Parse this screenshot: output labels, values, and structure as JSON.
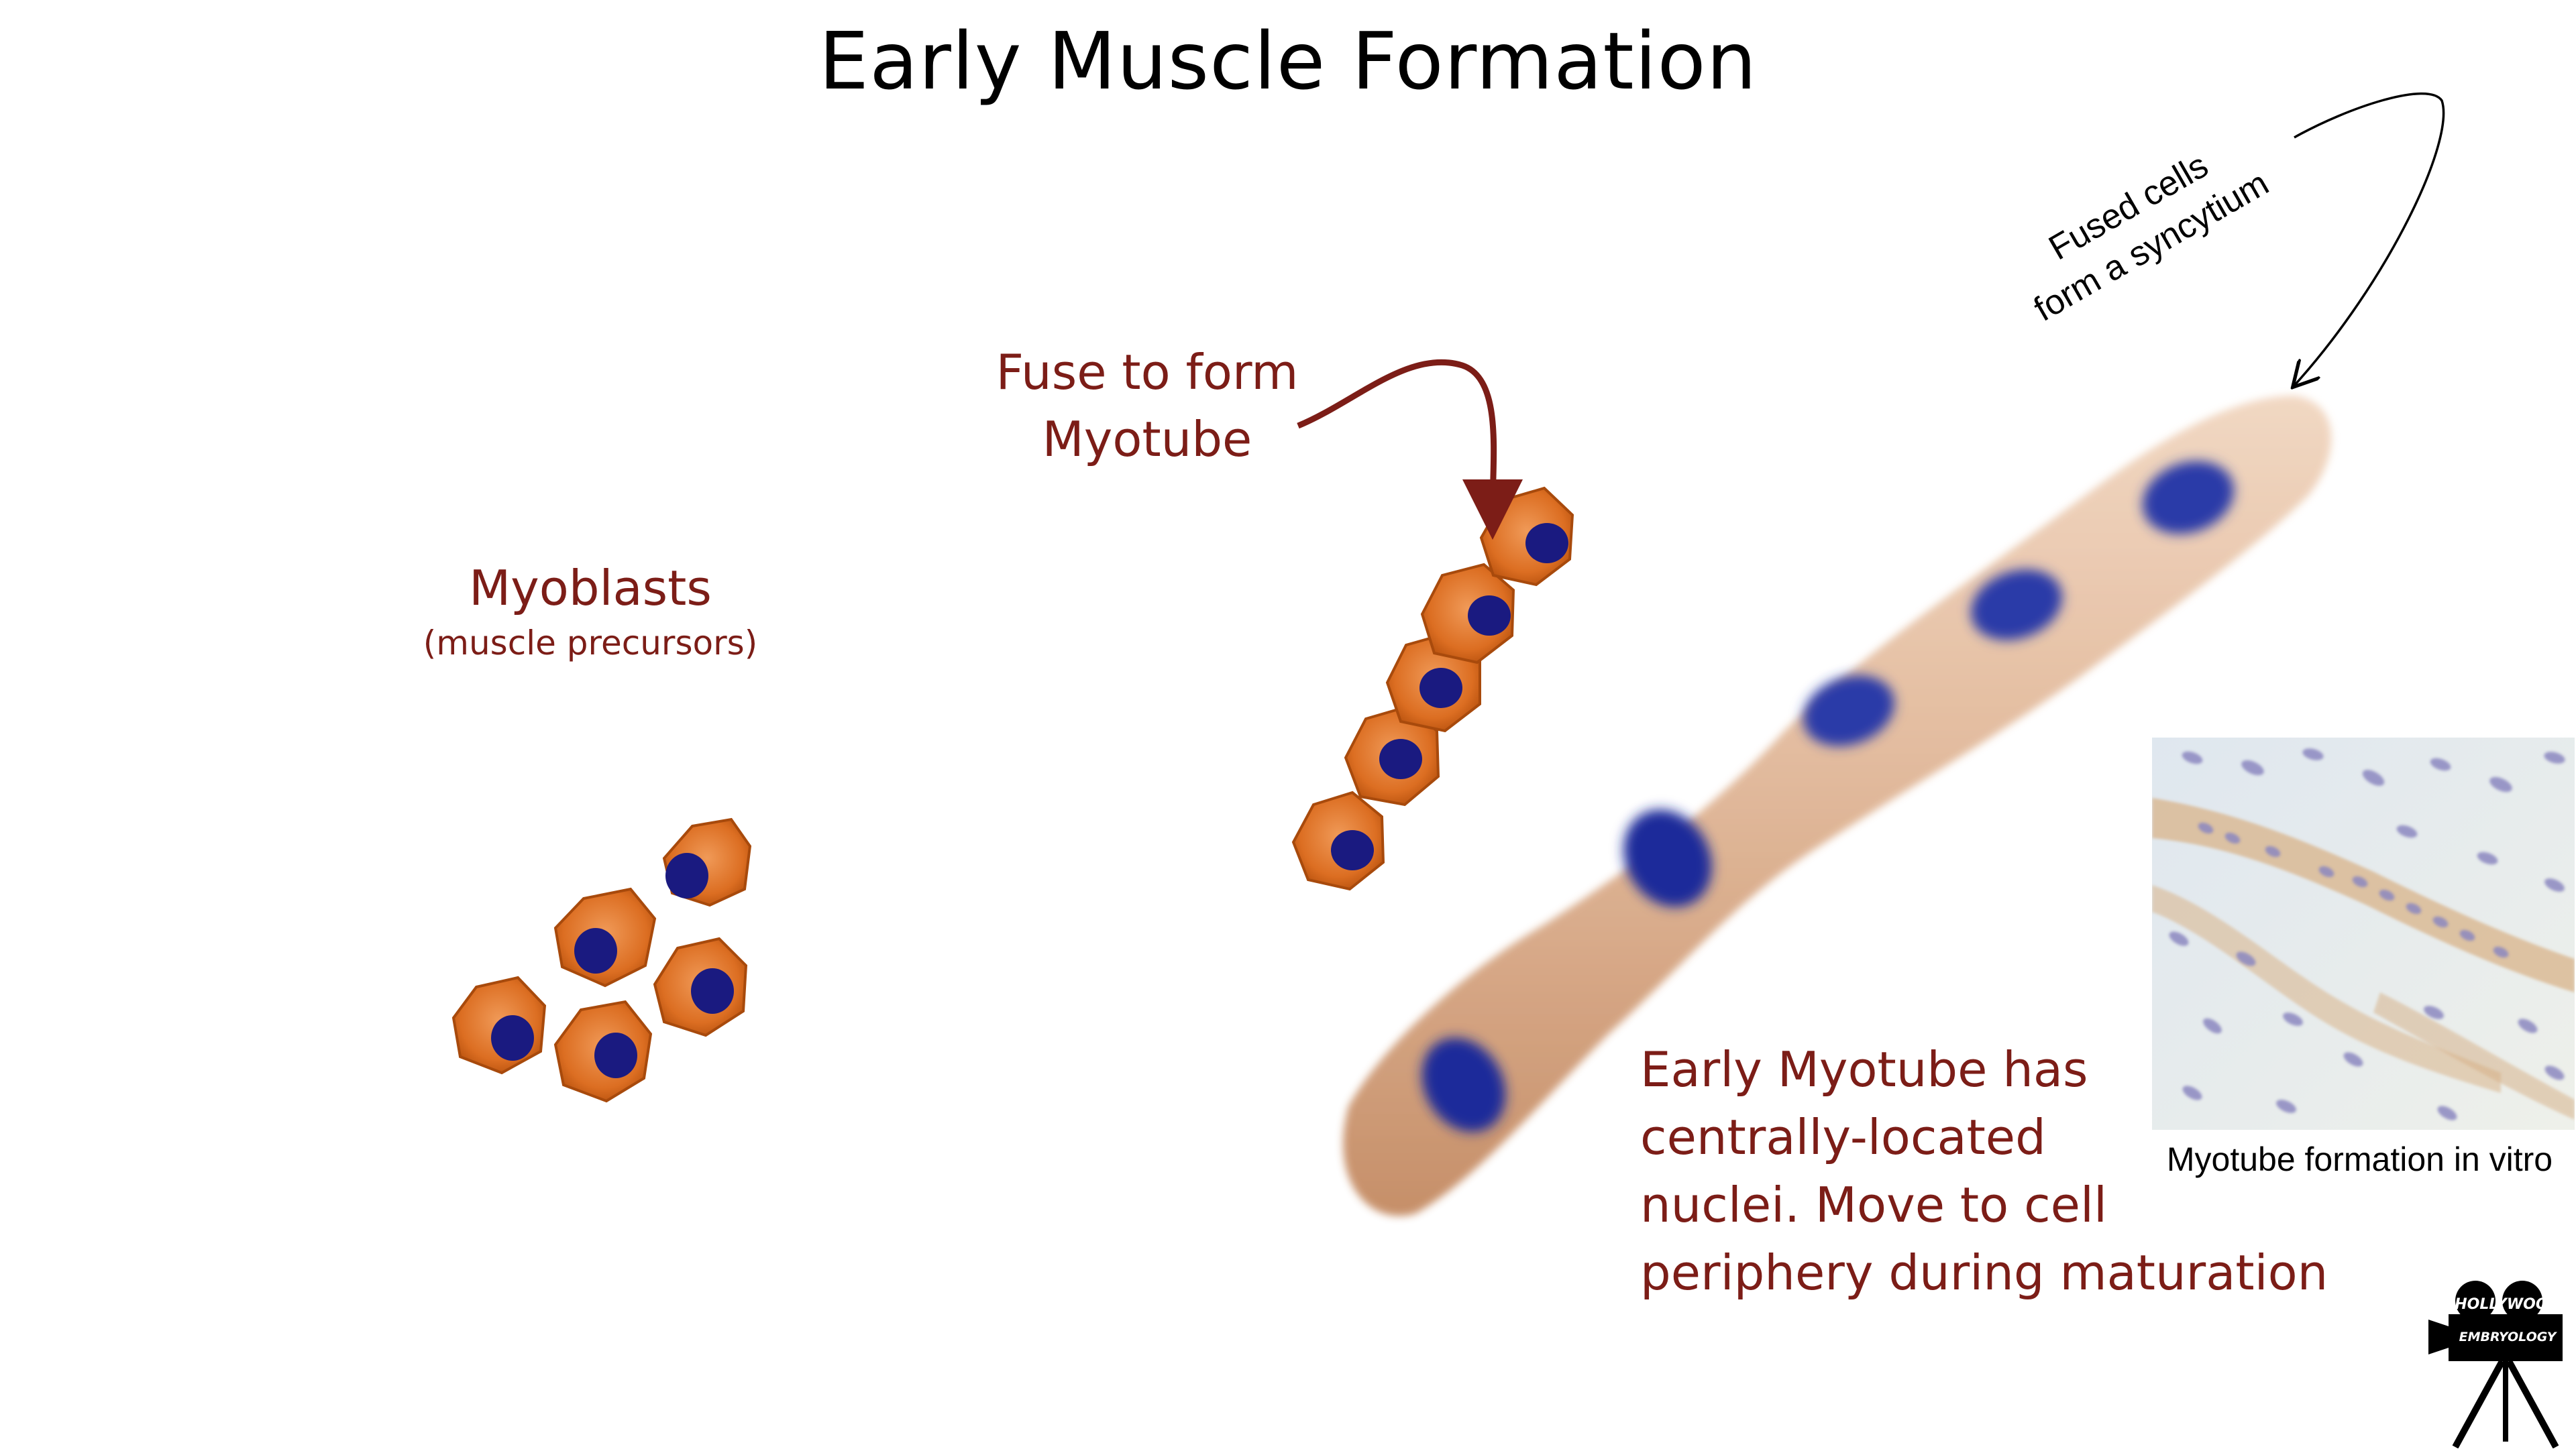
{
  "title": "Early Muscle Formation",
  "myoblasts": {
    "label": "Myoblasts",
    "sublabel": "(muscle precursors)"
  },
  "fuse": {
    "line1": "Fuse to form",
    "line2": "Myotube"
  },
  "fused_note": {
    "line1": "Fused cells",
    "line2": "form a syncytium"
  },
  "early_myotube": {
    "line1": "Early Myotube has",
    "line2": "centrally-located",
    "line3": "nuclei.  Move to cell",
    "line4": "periphery during maturation"
  },
  "photo_caption": "Myotube formation in vitro",
  "logo": {
    "line1": "HOLLYWOOD",
    "line2": "EMBRYOLOGY"
  },
  "colors": {
    "label_red": "#7c1d17",
    "cell_orange": "#d96a1e",
    "nucleus_blue": "#1a1a80",
    "myotube_tan": "#d9ab8a"
  }
}
